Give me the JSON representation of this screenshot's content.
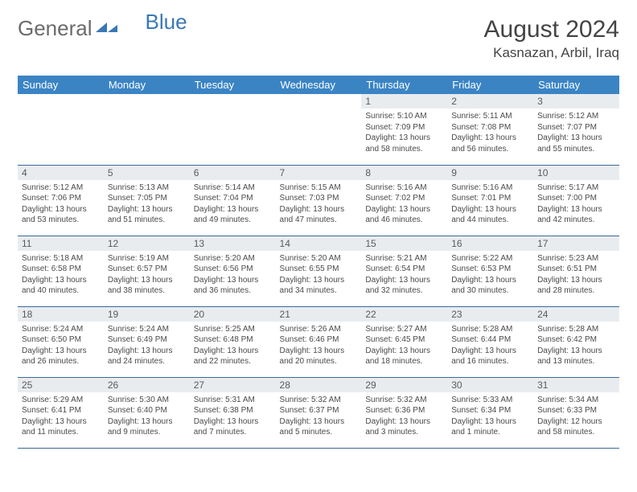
{
  "logo": {
    "text_general": "General",
    "text_blue": "Blue"
  },
  "header": {
    "month_title": "August 2024",
    "location": "Kasnazan, Arbil, Iraq"
  },
  "colors": {
    "header_bg": "#3b84c4",
    "header_text": "#ffffff",
    "daynum_bg": "#e9ecef",
    "row_border": "#3b6a9a",
    "text": "#4a4a4a",
    "logo_blue": "#3a78b5"
  },
  "dayNames": [
    "Sunday",
    "Monday",
    "Tuesday",
    "Wednesday",
    "Thursday",
    "Friday",
    "Saturday"
  ],
  "weeks": [
    [
      null,
      null,
      null,
      null,
      {
        "n": "1",
        "sunrise": "5:10 AM",
        "sunset": "7:09 PM",
        "daylight": "13 hours and 58 minutes."
      },
      {
        "n": "2",
        "sunrise": "5:11 AM",
        "sunset": "7:08 PM",
        "daylight": "13 hours and 56 minutes."
      },
      {
        "n": "3",
        "sunrise": "5:12 AM",
        "sunset": "7:07 PM",
        "daylight": "13 hours and 55 minutes."
      }
    ],
    [
      {
        "n": "4",
        "sunrise": "5:12 AM",
        "sunset": "7:06 PM",
        "daylight": "13 hours and 53 minutes."
      },
      {
        "n": "5",
        "sunrise": "5:13 AM",
        "sunset": "7:05 PM",
        "daylight": "13 hours and 51 minutes."
      },
      {
        "n": "6",
        "sunrise": "5:14 AM",
        "sunset": "7:04 PM",
        "daylight": "13 hours and 49 minutes."
      },
      {
        "n": "7",
        "sunrise": "5:15 AM",
        "sunset": "7:03 PM",
        "daylight": "13 hours and 47 minutes."
      },
      {
        "n": "8",
        "sunrise": "5:16 AM",
        "sunset": "7:02 PM",
        "daylight": "13 hours and 46 minutes."
      },
      {
        "n": "9",
        "sunrise": "5:16 AM",
        "sunset": "7:01 PM",
        "daylight": "13 hours and 44 minutes."
      },
      {
        "n": "10",
        "sunrise": "5:17 AM",
        "sunset": "7:00 PM",
        "daylight": "13 hours and 42 minutes."
      }
    ],
    [
      {
        "n": "11",
        "sunrise": "5:18 AM",
        "sunset": "6:58 PM",
        "daylight": "13 hours and 40 minutes."
      },
      {
        "n": "12",
        "sunrise": "5:19 AM",
        "sunset": "6:57 PM",
        "daylight": "13 hours and 38 minutes."
      },
      {
        "n": "13",
        "sunrise": "5:20 AM",
        "sunset": "6:56 PM",
        "daylight": "13 hours and 36 minutes."
      },
      {
        "n": "14",
        "sunrise": "5:20 AM",
        "sunset": "6:55 PM",
        "daylight": "13 hours and 34 minutes."
      },
      {
        "n": "15",
        "sunrise": "5:21 AM",
        "sunset": "6:54 PM",
        "daylight": "13 hours and 32 minutes."
      },
      {
        "n": "16",
        "sunrise": "5:22 AM",
        "sunset": "6:53 PM",
        "daylight": "13 hours and 30 minutes."
      },
      {
        "n": "17",
        "sunrise": "5:23 AM",
        "sunset": "6:51 PM",
        "daylight": "13 hours and 28 minutes."
      }
    ],
    [
      {
        "n": "18",
        "sunrise": "5:24 AM",
        "sunset": "6:50 PM",
        "daylight": "13 hours and 26 minutes."
      },
      {
        "n": "19",
        "sunrise": "5:24 AM",
        "sunset": "6:49 PM",
        "daylight": "13 hours and 24 minutes."
      },
      {
        "n": "20",
        "sunrise": "5:25 AM",
        "sunset": "6:48 PM",
        "daylight": "13 hours and 22 minutes."
      },
      {
        "n": "21",
        "sunrise": "5:26 AM",
        "sunset": "6:46 PM",
        "daylight": "13 hours and 20 minutes."
      },
      {
        "n": "22",
        "sunrise": "5:27 AM",
        "sunset": "6:45 PM",
        "daylight": "13 hours and 18 minutes."
      },
      {
        "n": "23",
        "sunrise": "5:28 AM",
        "sunset": "6:44 PM",
        "daylight": "13 hours and 16 minutes."
      },
      {
        "n": "24",
        "sunrise": "5:28 AM",
        "sunset": "6:42 PM",
        "daylight": "13 hours and 13 minutes."
      }
    ],
    [
      {
        "n": "25",
        "sunrise": "5:29 AM",
        "sunset": "6:41 PM",
        "daylight": "13 hours and 11 minutes."
      },
      {
        "n": "26",
        "sunrise": "5:30 AM",
        "sunset": "6:40 PM",
        "daylight": "13 hours and 9 minutes."
      },
      {
        "n": "27",
        "sunrise": "5:31 AM",
        "sunset": "6:38 PM",
        "daylight": "13 hours and 7 minutes."
      },
      {
        "n": "28",
        "sunrise": "5:32 AM",
        "sunset": "6:37 PM",
        "daylight": "13 hours and 5 minutes."
      },
      {
        "n": "29",
        "sunrise": "5:32 AM",
        "sunset": "6:36 PM",
        "daylight": "13 hours and 3 minutes."
      },
      {
        "n": "30",
        "sunrise": "5:33 AM",
        "sunset": "6:34 PM",
        "daylight": "13 hours and 1 minute."
      },
      {
        "n": "31",
        "sunrise": "5:34 AM",
        "sunset": "6:33 PM",
        "daylight": "12 hours and 58 minutes."
      }
    ]
  ],
  "labels": {
    "sunrise": "Sunrise:",
    "sunset": "Sunset:",
    "daylight": "Daylight:"
  }
}
